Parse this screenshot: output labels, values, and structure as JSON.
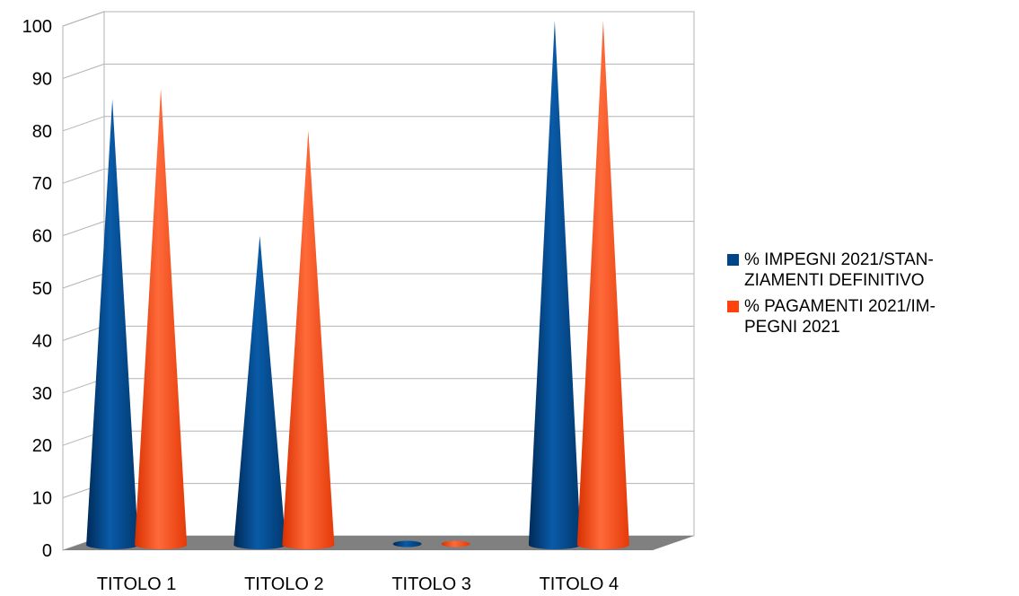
{
  "chart_data": {
    "type": "bar",
    "title": "",
    "xlabel": "",
    "ylabel": "",
    "categories": [
      "TITOLO 1",
      "TITOLO 2",
      "TITOLO 3",
      "TITOLO 4"
    ],
    "series": [
      {
        "name": "% IMPEGNI 2021/STAN-ZIAMENTI DEFINITIVO",
        "values": [
          85,
          59,
          0,
          100
        ],
        "color": "#004586"
      },
      {
        "name": "% PAGAMENTI 2021/IM-PEGNI 2021",
        "values": [
          87,
          79,
          0,
          100
        ],
        "color": "#FF420E"
      }
    ],
    "ylim": [
      0,
      100
    ],
    "yticks": [
      0,
      10,
      20,
      30,
      40,
      50,
      60,
      70,
      80,
      90,
      100
    ],
    "grid": true,
    "legend_position": "right",
    "style": "3d-cone"
  },
  "legend": {
    "items": [
      {
        "label_line1": "% IMPEGNI 2021/STAN-",
        "label_line2": "ZIAMENTI DEFINITIVO",
        "color": "#004586"
      },
      {
        "label_line1": "% PAGAMENTI 2021/IM-",
        "label_line2": "PEGNI 2021",
        "color": "#FF420E"
      }
    ]
  },
  "colors": {
    "floor": "#808080",
    "grid": "#b3b3b3"
  }
}
